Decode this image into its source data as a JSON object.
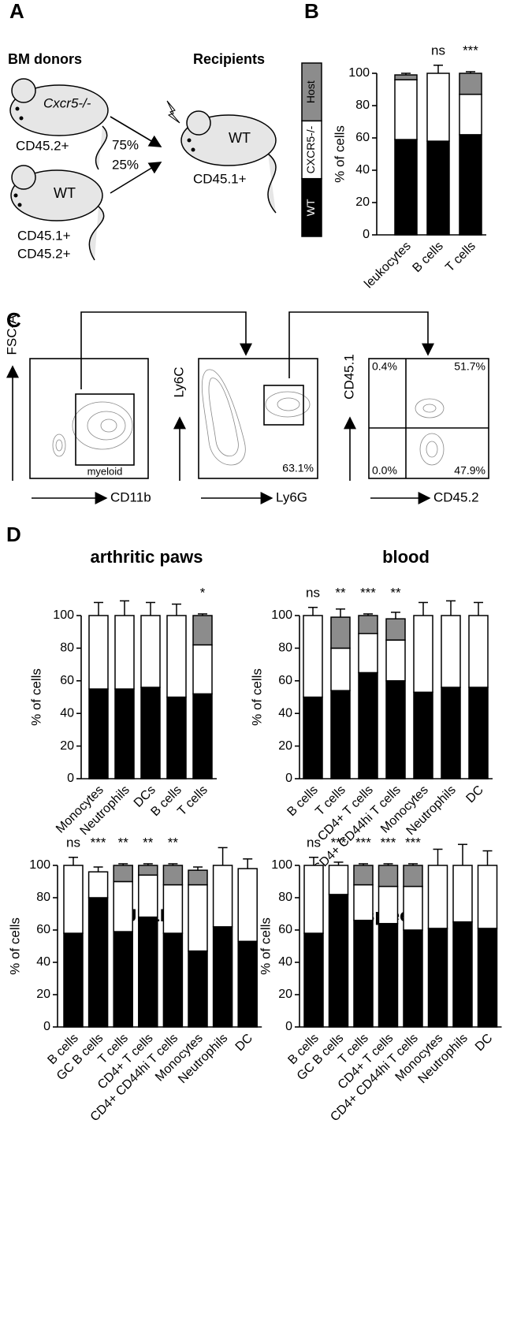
{
  "panel_labels": [
    "A",
    "B",
    "C",
    "D"
  ],
  "diagram": {
    "donors_title": "BM donors",
    "recipients_title": "Recipients",
    "donor1_label": "Cxcr5-/-",
    "donor1_marker": "CD45.2+",
    "donor2_label": "WT",
    "donor2_markers": [
      "CD45.1+",
      "CD45.2+"
    ],
    "ratios": [
      "75%",
      "25%"
    ],
    "recipient_label": "WT",
    "recipient_marker": "CD45.1+"
  },
  "flow": {
    "plot1": {
      "y_label": "FSC-A",
      "x_label": "CD11b",
      "gate": "myeloid"
    },
    "plot2": {
      "y_label": "Ly6C",
      "x_label": "Ly6G",
      "gate": "63.1%"
    },
    "plot3": {
      "y_label": "CD45.1",
      "x_label": "CD45.2",
      "quadrants": [
        "0.4%",
        "51.7%",
        "0.0%",
        "47.9%"
      ]
    }
  },
  "chart_data": [
    {
      "type": "stacked_bar",
      "y_label": "% of cells",
      "ylim": [
        0,
        100
      ],
      "yticks": [
        0,
        20,
        40,
        60,
        80,
        100
      ],
      "legend": "left",
      "categories": [
        "leukocytes",
        "B cells",
        "T cells"
      ],
      "annotations": [
        null,
        "ns",
        "***"
      ],
      "series": [
        {
          "name": "WT",
          "color": "#000000",
          "values": [
            59,
            58,
            62
          ],
          "errors": [
            5,
            6,
            3
          ]
        },
        {
          "name": "CXCR5-/-",
          "color": "#ffffff",
          "values": [
            37,
            42,
            25
          ],
          "errors": [
            null,
            5,
            3
          ]
        },
        {
          "name": "Host",
          "color": "#8c8c8c",
          "values": [
            3,
            0,
            13
          ],
          "errors": [
            1,
            null,
            1
          ]
        }
      ]
    },
    {
      "type": "stacked_bar",
      "title": "arthritic paws",
      "y_label": "% of cells",
      "ylim": [
        0,
        100
      ],
      "yticks": [
        0,
        20,
        40,
        60,
        80,
        100
      ],
      "categories": [
        "Monocytes",
        "Neutrophils",
        "DCs",
        "B cells",
        "T cells"
      ],
      "annotations": [
        null,
        null,
        null,
        null,
        "*"
      ],
      "series": [
        {
          "color": "#000000",
          "values": [
            55,
            55,
            56,
            50,
            52
          ],
          "errors": [
            9,
            9,
            8,
            7,
            5
          ]
        },
        {
          "color": "#ffffff",
          "values": [
            45,
            45,
            44,
            50,
            30
          ],
          "errors": [
            8,
            9,
            8,
            7,
            6
          ]
        },
        {
          "color": "#8c8c8c",
          "values": [
            0,
            0,
            0,
            0,
            18
          ],
          "errors": [
            null,
            null,
            null,
            null,
            1
          ]
        }
      ]
    },
    {
      "type": "stacked_bar",
      "title": "blood",
      "y_label": "% of cells",
      "ylim": [
        0,
        100
      ],
      "yticks": [
        0,
        20,
        40,
        60,
        80,
        100
      ],
      "categories": [
        "B cells",
        "T cells",
        "CD4+ T cells",
        "CD4+ CD44hi T cells",
        "Monocytes",
        "Neutrophils",
        "DC"
      ],
      "annotations": [
        "ns",
        "**",
        "***",
        "**",
        null,
        null,
        null
      ],
      "series": [
        {
          "color": "#000000",
          "values": [
            50,
            54,
            65,
            60,
            53,
            56,
            56
          ],
          "errors": [
            5,
            5,
            3,
            5,
            8,
            9,
            8
          ]
        },
        {
          "color": "#ffffff",
          "values": [
            50,
            26,
            24,
            25,
            47,
            44,
            44
          ],
          "errors": [
            5,
            2,
            3,
            3,
            8,
            9,
            8
          ]
        },
        {
          "color": "#8c8c8c",
          "values": [
            0,
            19,
            11,
            13,
            0,
            0,
            0
          ],
          "errors": [
            null,
            5,
            1,
            4,
            null,
            null,
            null
          ]
        }
      ]
    },
    {
      "type": "stacked_bar",
      "title": "JDLN",
      "y_label": "% of cells",
      "ylim": [
        0,
        100
      ],
      "yticks": [
        0,
        20,
        40,
        60,
        80,
        100
      ],
      "categories": [
        "B cells",
        "GC B cells",
        "T cells",
        "CD4+ T cells",
        "CD4+ CD44hi T cells",
        "Monocytes",
        "Neutrophils",
        "DC"
      ],
      "annotations": [
        "ns",
        "***",
        "**",
        "**",
        "**",
        null,
        null,
        null
      ],
      "series": [
        {
          "color": "#000000",
          "values": [
            58,
            80,
            59,
            68,
            58,
            47,
            62,
            53
          ],
          "errors": [
            6,
            4,
            5,
            5,
            3,
            5,
            12,
            7
          ]
        },
        {
          "color": "#ffffff",
          "values": [
            42,
            16,
            31,
            26,
            30,
            41,
            38,
            45
          ],
          "errors": [
            5,
            3,
            2,
            1,
            1,
            2,
            11,
            6
          ]
        },
        {
          "color": "#8c8c8c",
          "values": [
            0,
            0,
            10,
            6,
            12,
            9,
            0,
            0
          ],
          "errors": [
            null,
            null,
            1,
            1,
            1,
            2,
            null,
            null
          ]
        }
      ]
    },
    {
      "type": "stacked_bar",
      "title": "spleen",
      "y_label": "% of cells",
      "ylim": [
        0,
        100
      ],
      "yticks": [
        0,
        20,
        40,
        60,
        80,
        100
      ],
      "categories": [
        "B cells",
        "GC B cells",
        "T cells",
        "CD4+ T cells",
        "CD4+ CD44hi T cells",
        "Monocytes",
        "Neutrophils",
        "DC"
      ],
      "annotations": [
        "ns",
        "***",
        "***",
        "***",
        "***",
        null,
        null,
        null
      ],
      "series": [
        {
          "color": "#000000",
          "values": [
            58,
            82,
            66,
            64,
            60,
            61,
            65,
            61
          ],
          "errors": [
            5,
            3,
            3,
            3,
            2,
            11,
            12,
            10
          ]
        },
        {
          "color": "#ffffff",
          "values": [
            42,
            18,
            22,
            23,
            27,
            39,
            35,
            39
          ],
          "errors": [
            5,
            2,
            3,
            3,
            1,
            10,
            13,
            9
          ]
        },
        {
          "color": "#8c8c8c",
          "values": [
            0,
            0,
            12,
            13,
            13,
            0,
            0,
            0
          ],
          "errors": [
            null,
            null,
            1,
            1,
            1,
            null,
            null,
            null
          ]
        }
      ]
    }
  ]
}
